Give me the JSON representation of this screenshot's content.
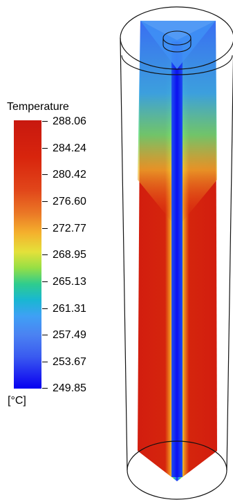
{
  "legend": {
    "title": "Temperature",
    "unit": "[°C]",
    "ticks": [
      "288.06",
      "284.24",
      "280.42",
      "276.60",
      "272.77",
      "268.95",
      "265.13",
      "261.31",
      "257.49",
      "253.67",
      "249.85"
    ],
    "colors": [
      "#0500f0",
      "#3a5bf0",
      "#3fa0f5",
      "#19b7d2",
      "#2fcc8e",
      "#96df45",
      "#e4e13a",
      "#f4b12d",
      "#eb7a26",
      "#e1461a",
      "#c8180f"
    ]
  },
  "model": {
    "outer_color": "#000000",
    "hot_color": "#d21d0e",
    "cold_color": "#0a10f0"
  }
}
